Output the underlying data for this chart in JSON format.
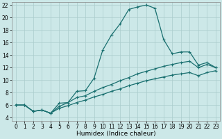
{
  "xlabel": "Humidex (Indice chaleur)",
  "background_color": "#cce8e8",
  "grid_color": "#aacccc",
  "line_color": "#1a7070",
  "xlim": [
    -0.5,
    23.5
  ],
  "ylim": [
    3.5,
    22.5
  ],
  "xticks": [
    0,
    1,
    2,
    3,
    4,
    5,
    6,
    7,
    8,
    9,
    10,
    11,
    12,
    13,
    14,
    15,
    16,
    17,
    18,
    19,
    20,
    21,
    22,
    23
  ],
  "yticks": [
    4,
    6,
    8,
    10,
    12,
    14,
    16,
    18,
    20,
    22
  ],
  "line1_x": [
    0,
    1,
    2,
    3,
    4,
    5,
    6,
    7,
    8,
    9,
    10,
    11,
    12,
    13,
    14,
    15,
    16,
    17,
    18,
    19,
    20,
    21,
    22,
    23
  ],
  "line1_y": [
    6.0,
    6.0,
    5.0,
    5.2,
    4.7,
    6.3,
    6.4,
    8.2,
    8.3,
    10.3,
    14.8,
    17.2,
    19.0,
    21.3,
    21.7,
    22.0,
    21.5,
    16.5,
    14.2,
    14.5,
    14.5,
    12.4,
    12.8,
    12.0
  ],
  "line2_x": [
    0,
    1,
    2,
    3,
    4,
    5,
    6,
    7,
    8,
    9,
    10,
    11,
    12,
    13,
    14,
    15,
    16,
    17,
    18,
    19,
    20,
    21,
    22,
    23
  ],
  "line2_y": [
    6.0,
    6.0,
    5.0,
    5.2,
    4.7,
    5.8,
    6.4,
    7.2,
    7.5,
    8.2,
    8.8,
    9.3,
    9.9,
    10.4,
    11.0,
    11.4,
    11.8,
    12.2,
    12.5,
    12.8,
    13.0,
    12.0,
    12.5,
    12.0
  ],
  "line3_x": [
    0,
    1,
    2,
    3,
    4,
    5,
    6,
    7,
    8,
    9,
    10,
    11,
    12,
    13,
    14,
    15,
    16,
    17,
    18,
    19,
    20,
    21,
    22,
    23
  ],
  "line3_y": [
    6.0,
    6.0,
    5.0,
    5.2,
    4.7,
    5.5,
    5.9,
    6.4,
    6.8,
    7.3,
    7.7,
    8.2,
    8.6,
    9.1,
    9.5,
    9.9,
    10.2,
    10.5,
    10.8,
    11.0,
    11.2,
    10.7,
    11.2,
    11.5
  ],
  "marker": "+",
  "markersize": 3,
  "markeredgewidth": 0.8,
  "linewidth": 0.9,
  "xlabel_fontsize": 6.5,
  "tick_fontsize": 5.5
}
